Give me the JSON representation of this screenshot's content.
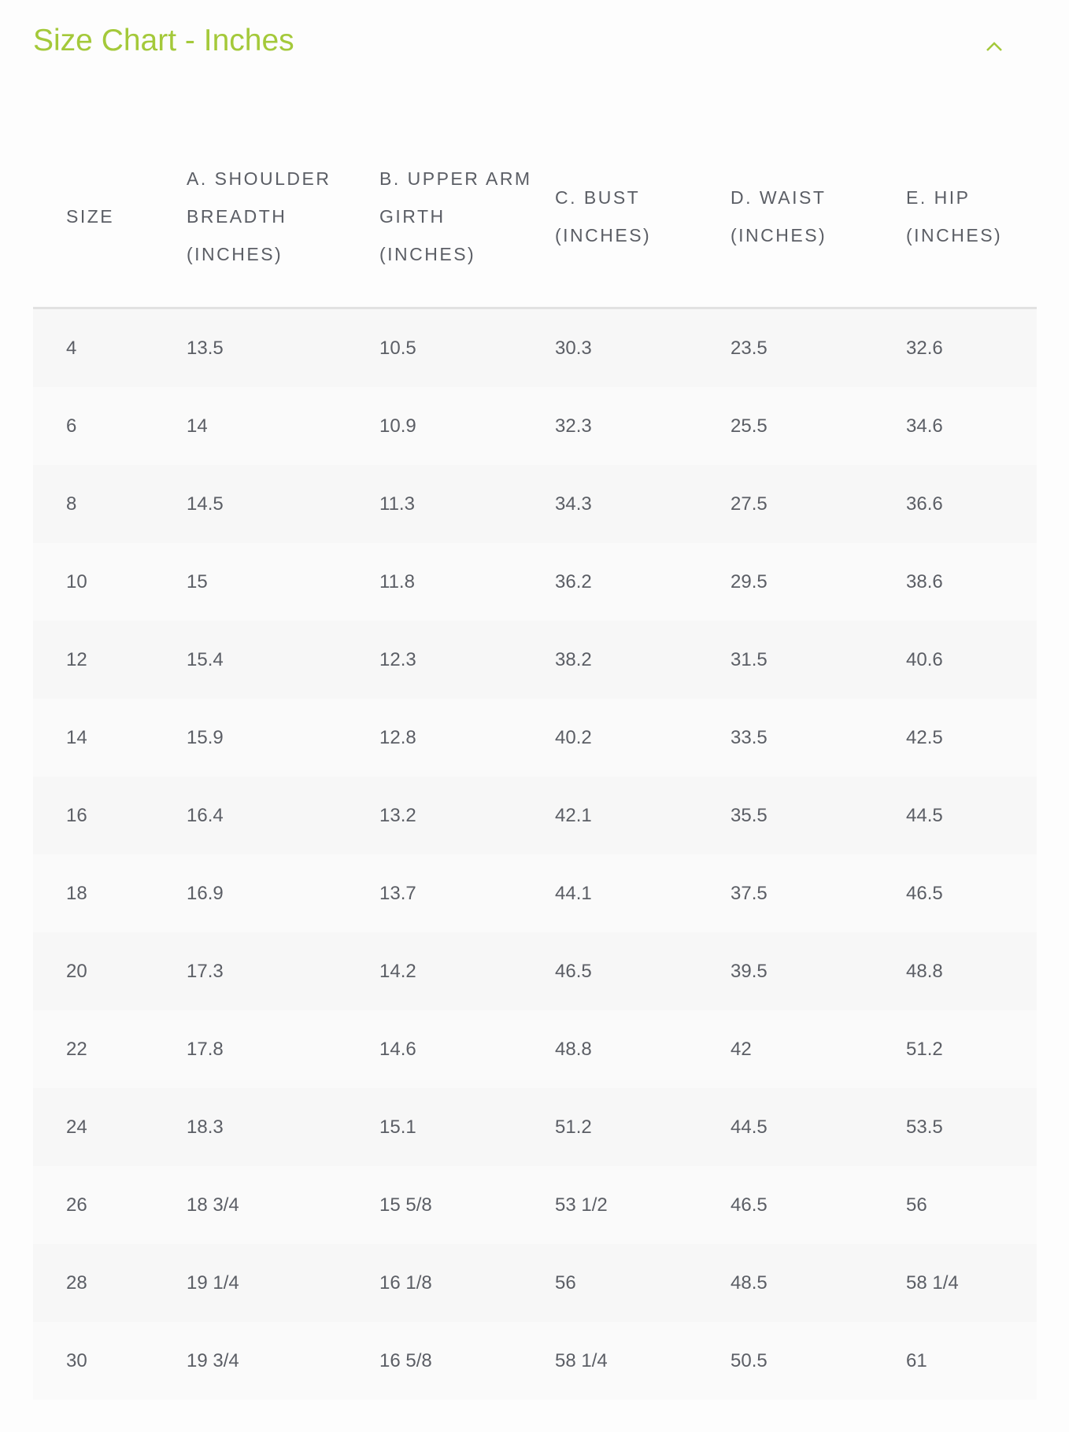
{
  "title": "Size Chart - Inches",
  "accent_color": "#a4c93a",
  "toggle_icon": "chevron-up-icon",
  "headers": [
    "SIZE",
    "A. SHOULDER BREADTH (INCHES)",
    "B. UPPER ARM GIRTH (INCHES)",
    "C. BUST (INCHES)",
    "D. WAIST (INCHES)",
    "E. HIP (INCHES)"
  ],
  "rows": [
    [
      "4",
      "13.5",
      "10.5",
      "30.3",
      "23.5",
      "32.6"
    ],
    [
      "6",
      "14",
      "10.9",
      "32.3",
      "25.5",
      "34.6"
    ],
    [
      "8",
      "14.5",
      "11.3",
      "34.3",
      "27.5",
      "36.6"
    ],
    [
      "10",
      "15",
      "11.8",
      "36.2",
      "29.5",
      "38.6"
    ],
    [
      "12",
      "15.4",
      "12.3",
      "38.2",
      "31.5",
      "40.6"
    ],
    [
      "14",
      "15.9",
      "12.8",
      "40.2",
      "33.5",
      "42.5"
    ],
    [
      "16",
      "16.4",
      "13.2",
      "42.1",
      "35.5",
      "44.5"
    ],
    [
      "18",
      "16.9",
      "13.7",
      "44.1",
      "37.5",
      "46.5"
    ],
    [
      "20",
      "17.3",
      "14.2",
      "46.5",
      "39.5",
      "48.8"
    ],
    [
      "22",
      "17.8",
      "14.6",
      "48.8",
      "42",
      "51.2"
    ],
    [
      "24",
      "18.3",
      "15.1",
      "51.2",
      "44.5",
      "53.5"
    ],
    [
      "26",
      "18 3/4",
      "15 5/8",
      "53 1/2",
      "46.5",
      "56"
    ],
    [
      "28",
      "19 1/4",
      "16 1/8",
      "56",
      "48.5",
      "58 1/4"
    ],
    [
      "30",
      "19 3/4",
      "16 5/8",
      "58 1/4",
      "50.5",
      "61"
    ]
  ]
}
